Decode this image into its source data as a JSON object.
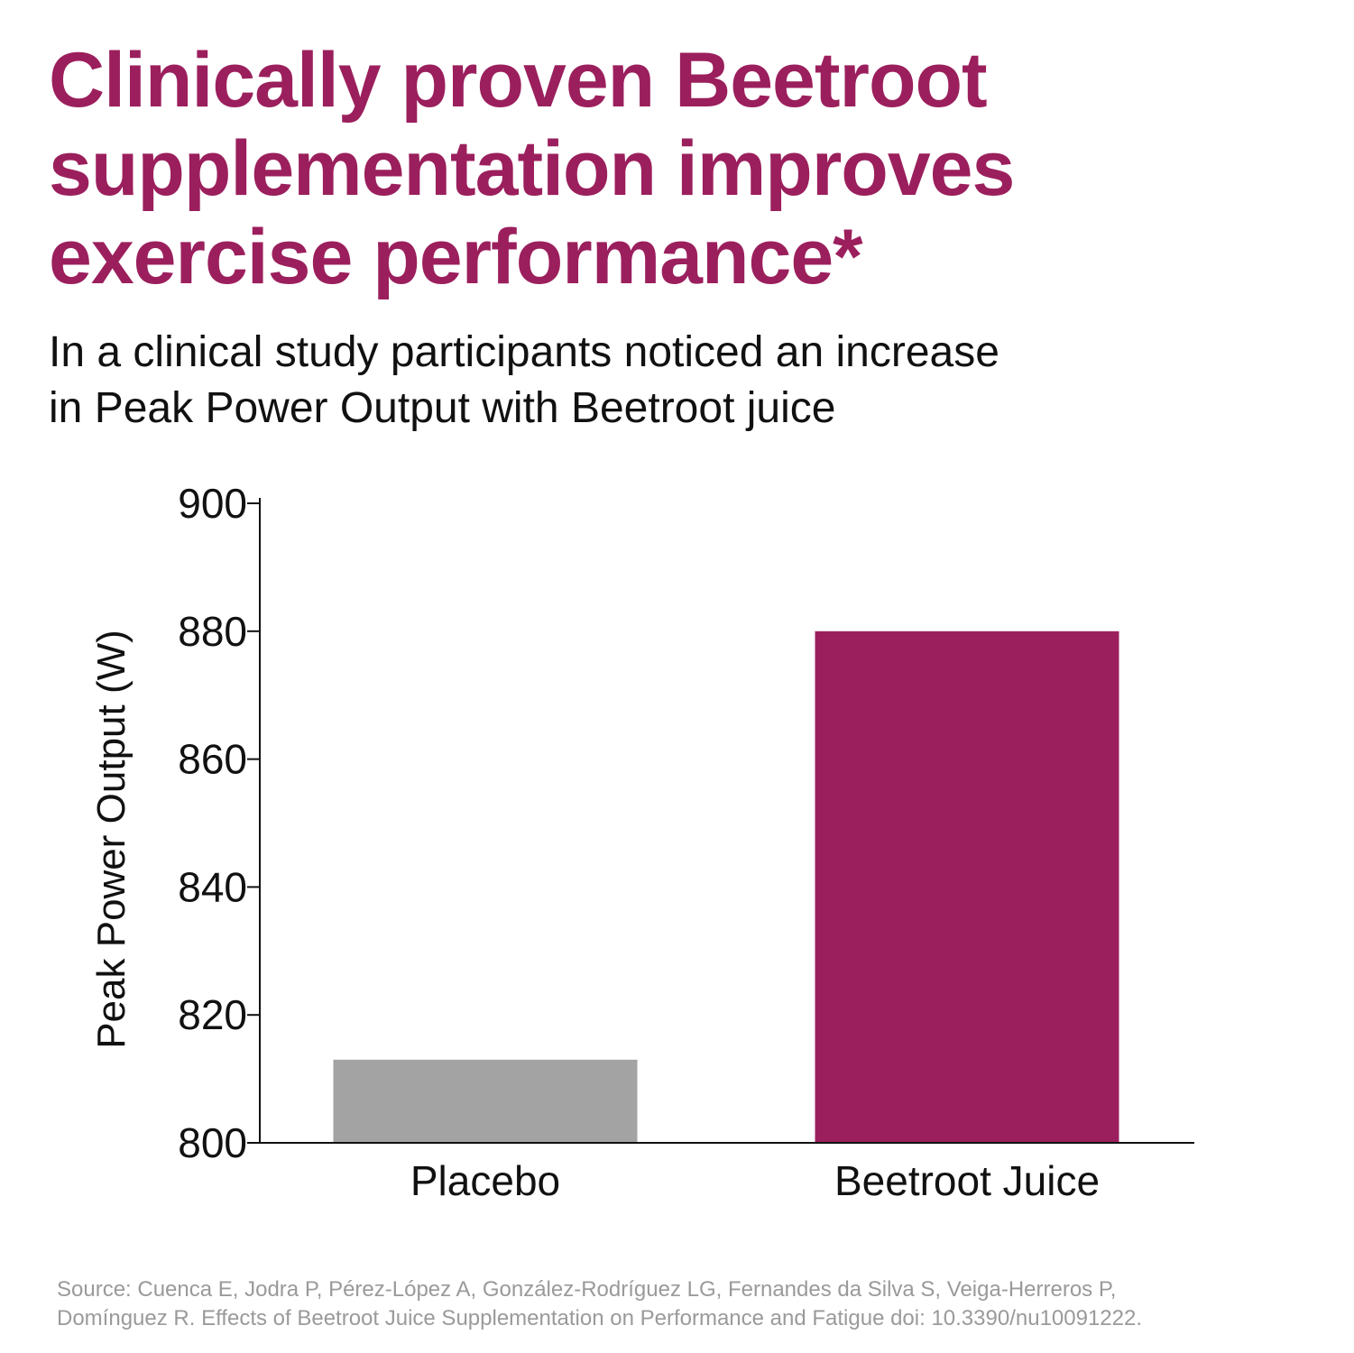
{
  "headline": {
    "lines": [
      "Clinically proven Beetroot",
      "supplementation improves",
      "exercise performance*"
    ]
  },
  "subheadline": {
    "lines": [
      "In a clinical study participants noticed an increase",
      "in Peak Power Output with Beetroot juice"
    ]
  },
  "colors": {
    "accent": "#9b1f5d",
    "placebo_bar": "#a3a3a3",
    "text": "#111111",
    "source_text": "#9a9a9a"
  },
  "chart_data": {
    "type": "bar",
    "categories": [
      "Placebo",
      "Beetroot Juice"
    ],
    "values": [
      813,
      880
    ],
    "bar_colors": [
      "#a3a3a3",
      "#9b1f5d"
    ],
    "ylabel": "Peak Power Output (W)",
    "xlabel": "",
    "ylim": [
      800,
      900
    ],
    "yticks": [
      800,
      820,
      840,
      860,
      880,
      900
    ],
    "grid": false,
    "legend": "none"
  },
  "source": {
    "lines": [
      "Source: Cuenca E, Jodra P, Pérez-López A, González-Rodríguez LG, Fernandes da Silva S, Veiga-Herreros P,",
      "Domínguez R. Effects of Beetroot Juice Supplementation on Performance and Fatigue doi: 10.3390/nu10091222."
    ]
  }
}
